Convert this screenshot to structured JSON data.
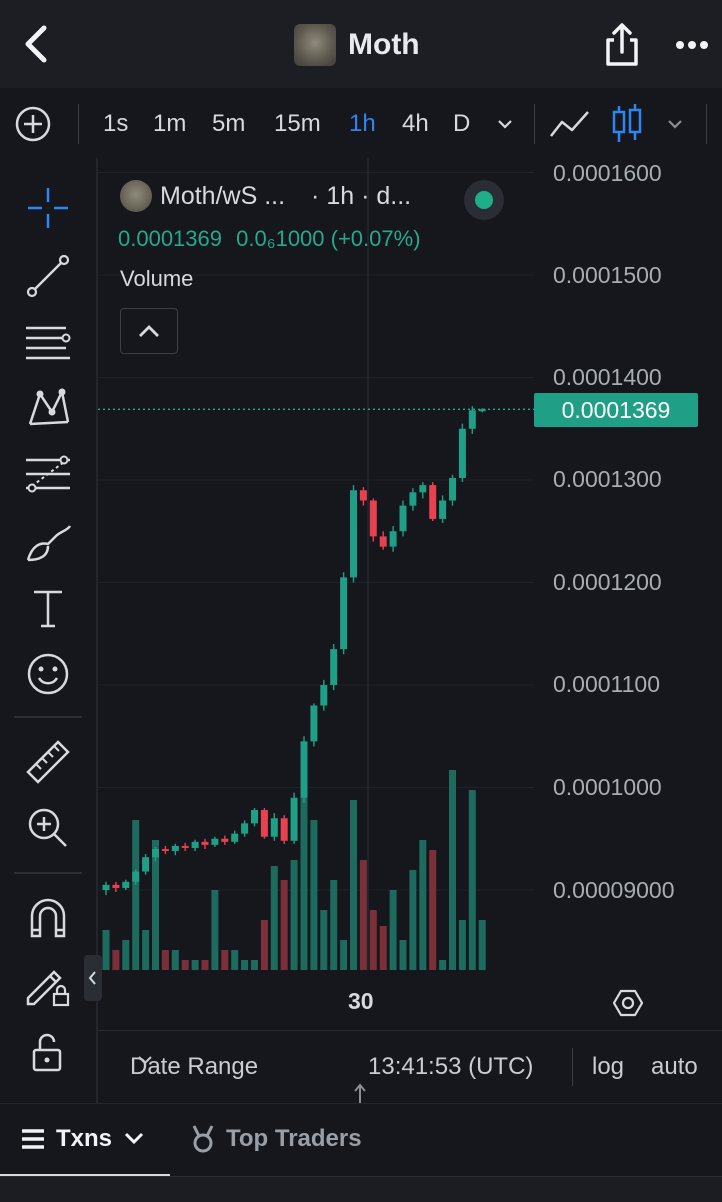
{
  "header": {
    "title": "Moth"
  },
  "timeframes": {
    "items": [
      {
        "label": "1s",
        "active": false
      },
      {
        "label": "1m",
        "active": false
      },
      {
        "label": "5m",
        "active": false
      },
      {
        "label": "15m",
        "active": false
      },
      {
        "label": "1h",
        "active": true
      },
      {
        "label": "4h",
        "active": false
      },
      {
        "label": "D",
        "active": false
      }
    ]
  },
  "legend": {
    "pair": "Moth/wS ...",
    "interval": "· 1h · d...",
    "price": "0.0001369",
    "change": "0.0₆1000 (+0.07%)",
    "volume_label": "Volume"
  },
  "price_badge": "0.0001369",
  "toolbar": {
    "date_range": "Date Range",
    "time": "13:41:53 (UTC)",
    "log": "log",
    "auto": "auto"
  },
  "tabs": {
    "txns": "Txns",
    "top_traders": "Top Traders"
  },
  "colors": {
    "up": "#1f9f86",
    "down": "#e8414f",
    "accent": "#2e84f0"
  },
  "chart_data": {
    "type": "candlestick",
    "y_tick_labels": [
      "0.0001600",
      "0.0001500",
      "0.0001400",
      "0.0001300",
      "0.0001200",
      "0.0001100",
      "0.0001000",
      "0.00009000"
    ],
    "ylim": [
      8.35e-05,
      0.000161
    ],
    "x_tick_labels": [
      "30"
    ],
    "last_price": 0.0001369,
    "candles": [
      {
        "o": 9e-05,
        "h": 9.08e-05,
        "l": 8.95e-05,
        "c": 9.05e-05
      },
      {
        "o": 9.05e-05,
        "h": 9.08e-05,
        "l": 8.98e-05,
        "c": 9.02e-05
      },
      {
        "o": 9.02e-05,
        "h": 9.1e-05,
        "l": 9e-05,
        "c": 9.08e-05
      },
      {
        "o": 9.08e-05,
        "h": 9.2e-05,
        "l": 9.05e-05,
        "c": 9.18e-05
      },
      {
        "o": 9.18e-05,
        "h": 9.35e-05,
        "l": 9.15e-05,
        "c": 9.32e-05
      },
      {
        "o": 9.32e-05,
        "h": 9.42e-05,
        "l": 9.28e-05,
        "c": 9.4e-05
      },
      {
        "o": 9.4e-05,
        "h": 9.43e-05,
        "l": 9.35e-05,
        "c": 9.38e-05
      },
      {
        "o": 9.38e-05,
        "h": 9.45e-05,
        "l": 9.34e-05,
        "c": 9.43e-05
      },
      {
        "o": 9.43e-05,
        "h": 9.46e-05,
        "l": 9.38e-05,
        "c": 9.41e-05
      },
      {
        "o": 9.41e-05,
        "h": 9.49e-05,
        "l": 9.38e-05,
        "c": 9.47e-05
      },
      {
        "o": 9.47e-05,
        "h": 9.5e-05,
        "l": 9.4e-05,
        "c": 9.44e-05
      },
      {
        "o": 9.44e-05,
        "h": 9.52e-05,
        "l": 9.42e-05,
        "c": 9.5e-05
      },
      {
        "o": 9.5e-05,
        "h": 9.53e-05,
        "l": 9.44e-05,
        "c": 9.47e-05
      },
      {
        "o": 9.47e-05,
        "h": 9.58e-05,
        "l": 9.45e-05,
        "c": 9.55e-05
      },
      {
        "o": 9.55e-05,
        "h": 9.68e-05,
        "l": 9.52e-05,
        "c": 9.65e-05
      },
      {
        "o": 9.65e-05,
        "h": 9.8e-05,
        "l": 9.62e-05,
        "c": 9.78e-05
      },
      {
        "o": 9.78e-05,
        "h": 9.8e-05,
        "l": 9.5e-05,
        "c": 9.52e-05
      },
      {
        "o": 9.52e-05,
        "h": 9.75e-05,
        "l": 9.48e-05,
        "c": 9.7e-05
      },
      {
        "o": 9.7e-05,
        "h": 9.73e-05,
        "l": 9.45e-05,
        "c": 9.48e-05
      },
      {
        "o": 9.48e-05,
        "h": 9.95e-05,
        "l": 9.45e-05,
        "c": 9.9e-05
      },
      {
        "o": 9.9e-05,
        "h": 0.000105,
        "l": 9.85e-05,
        "c": 0.0001045
      },
      {
        "o": 0.0001045,
        "h": 0.0001082,
        "l": 0.000104,
        "c": 0.000108
      },
      {
        "o": 0.000108,
        "h": 0.0001105,
        "l": 0.0001075,
        "c": 0.00011
      },
      {
        "o": 0.00011,
        "h": 0.000114,
        "l": 0.0001095,
        "c": 0.0001135
      },
      {
        "o": 0.0001135,
        "h": 0.000121,
        "l": 0.000113,
        "c": 0.0001205
      },
      {
        "o": 0.0001205,
        "h": 0.0001295,
        "l": 0.00012,
        "c": 0.000129
      },
      {
        "o": 0.000129,
        "h": 0.0001293,
        "l": 0.0001275,
        "c": 0.000128
      },
      {
        "o": 0.000128,
        "h": 0.0001282,
        "l": 0.000124,
        "c": 0.0001245
      },
      {
        "o": 0.0001245,
        "h": 0.000125,
        "l": 0.0001232,
        "c": 0.0001235
      },
      {
        "o": 0.0001235,
        "h": 0.0001255,
        "l": 0.000123,
        "c": 0.000125
      },
      {
        "o": 0.000125,
        "h": 0.000128,
        "l": 0.0001245,
        "c": 0.0001275
      },
      {
        "o": 0.0001275,
        "h": 0.0001292,
        "l": 0.000127,
        "c": 0.0001288
      },
      {
        "o": 0.0001288,
        "h": 0.0001298,
        "l": 0.0001282,
        "c": 0.0001295
      },
      {
        "o": 0.0001295,
        "h": 0.0001298,
        "l": 0.000126,
        "c": 0.0001262
      },
      {
        "o": 0.0001262,
        "h": 0.0001285,
        "l": 0.0001258,
        "c": 0.000128
      },
      {
        "o": 0.000128,
        "h": 0.0001305,
        "l": 0.0001275,
        "c": 0.0001302
      },
      {
        "o": 0.0001302,
        "h": 0.0001355,
        "l": 0.0001298,
        "c": 0.000135
      },
      {
        "o": 0.000135,
        "h": 0.0001372,
        "l": 0.0001345,
        "c": 0.0001368
      },
      {
        "o": 0.0001368,
        "h": 0.000137,
        "l": 0.0001366,
        "c": 0.0001369
      }
    ],
    "volume_relative": [
      0.2,
      0.1,
      0.15,
      0.75,
      0.2,
      0.65,
      0.1,
      0.1,
      0.05,
      0.05,
      0.05,
      0.4,
      0.1,
      0.1,
      0.05,
      0.05,
      0.25,
      0.52,
      0.45,
      0.55,
      0.9,
      0.75,
      0.3,
      0.45,
      0.15,
      0.85,
      0.55,
      0.3,
      0.22,
      0.4,
      0.15,
      0.5,
      0.65,
      0.6,
      0.05,
      1.0,
      0.25,
      0.9,
      0.25
    ]
  }
}
